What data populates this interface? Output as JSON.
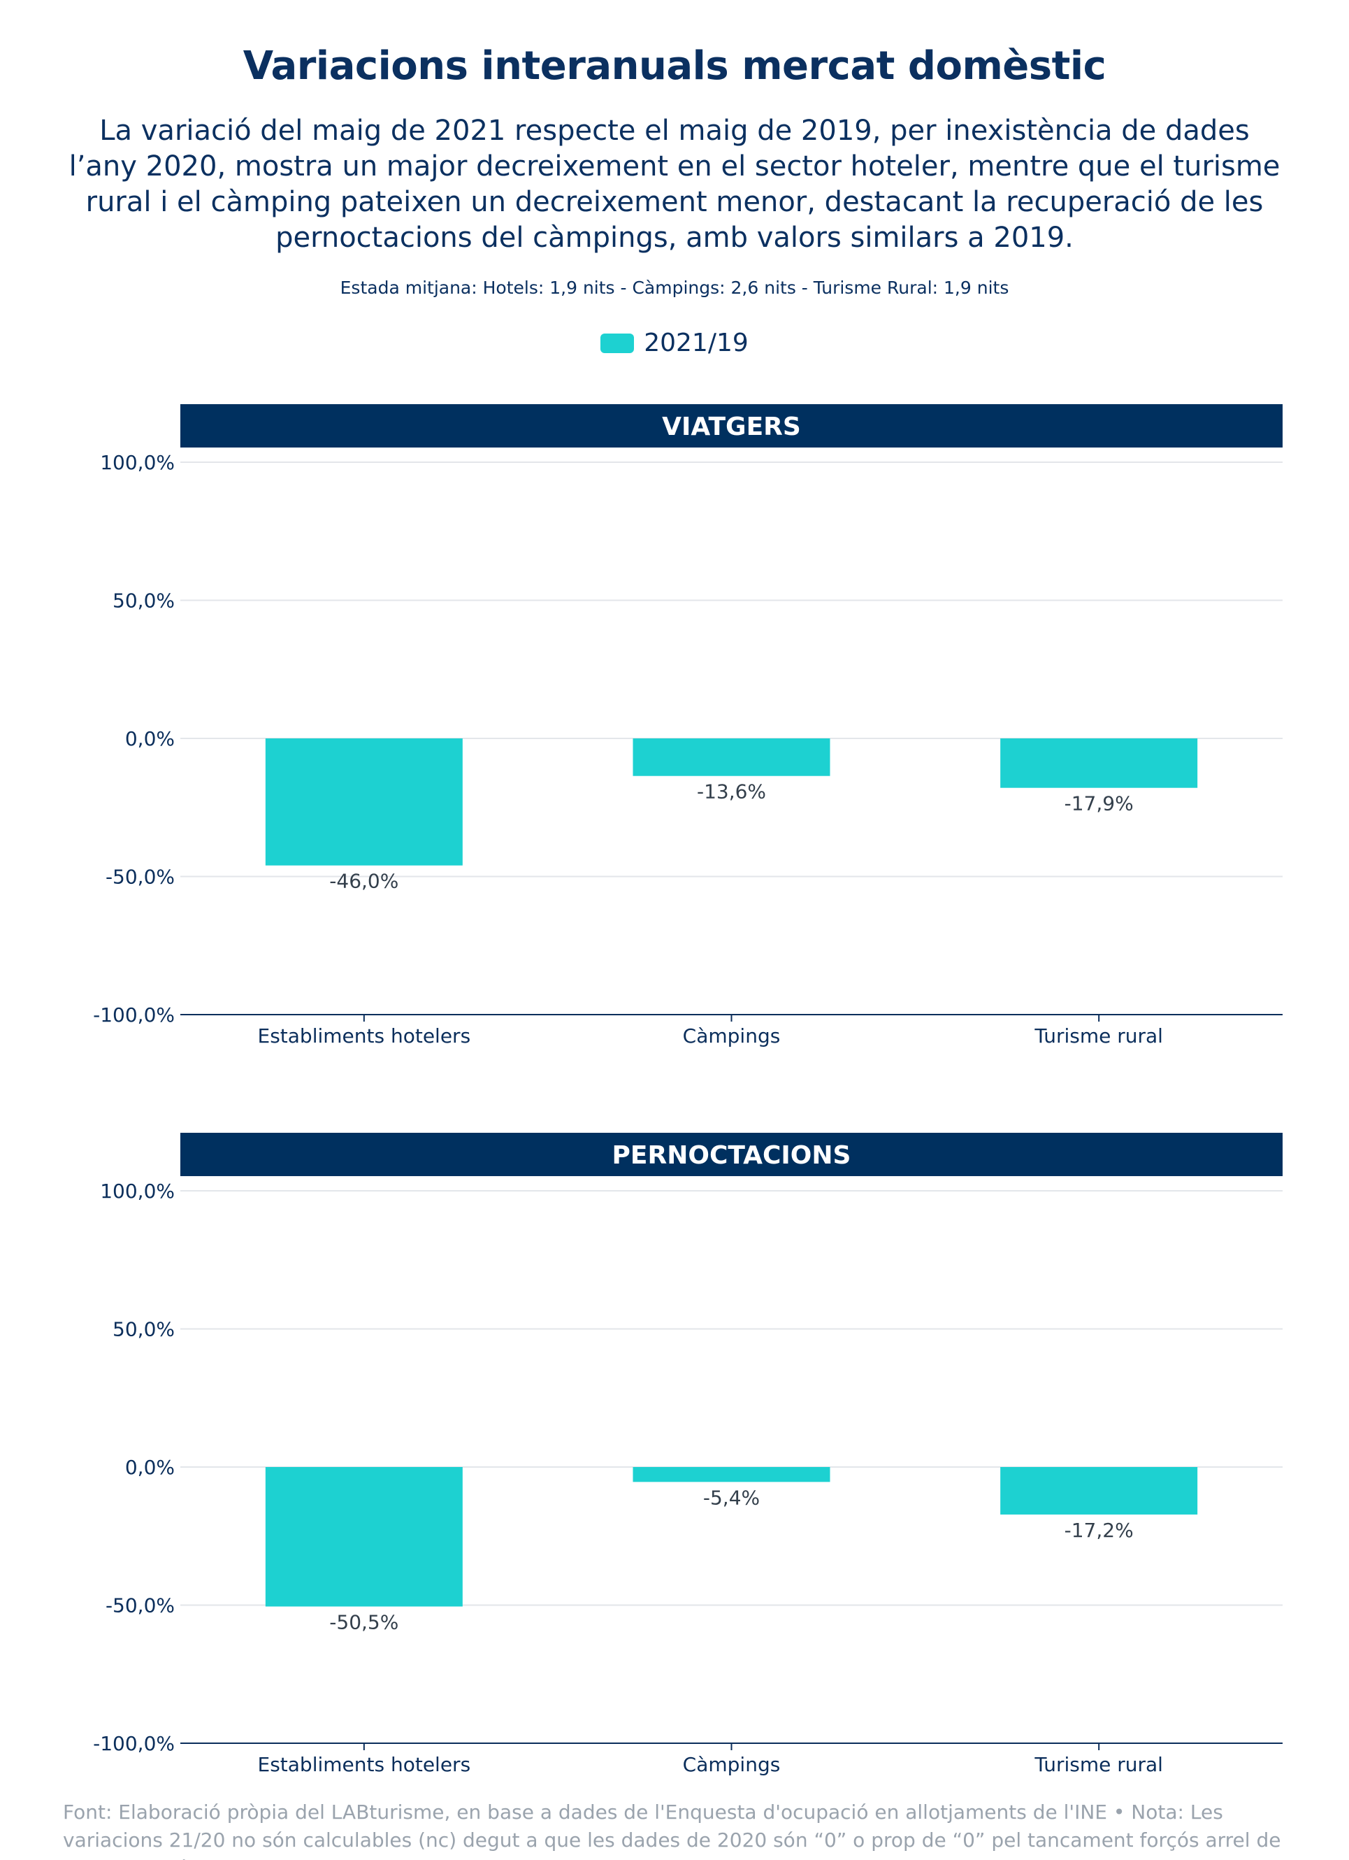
{
  "title": "Variacions interanuals mercat domèstic",
  "subtitle": "La variació del maig de 2021 respecte el maig de 2019, per inexistència de dades l’any 2020, mostra un major decreixement en el sector hoteler, mentre que el turisme rural i el càmping pateixen un decreixement menor, destacant la recuperació de les pernoctacions del càmpings, amb valors similars a 2019.",
  "note": "Estada mitjana: Hotels: 1,9 nits - Càmpings: 2,6 nits - Turisme Rural: 1,9 nits",
  "legend": {
    "label": "2021/19",
    "color": "#1dd1d1"
  },
  "colors": {
    "bar": "#1dd1d1",
    "header": "#00305f",
    "axis": "#0b2e5b",
    "grid": "#e3e6ea"
  },
  "footer": "Font: Elaboració pròpia del LABturisme, en base a dades de l'Enquesta d'ocupació en allotjaments de l'INE • Nota: Les variacions 21/20 no són calculables (nc) degut a que les dades de 2020 són “0” o prop de “0” pel tancament forçós arrel de la crisi sanitària de la COVID",
  "chart_data": [
    {
      "type": "bar",
      "title": "VIATGERS",
      "categories": [
        "Establiments hotelers",
        "Càmpings",
        "Turisme rural"
      ],
      "series": [
        {
          "name": "2021/19",
          "values": [
            -46.0,
            -13.6,
            -17.9
          ]
        }
      ],
      "data_labels": [
        "-46,0%",
        "-13,6%",
        "-17,9%"
      ],
      "ylim": [
        -100,
        100
      ],
      "yticks": [
        100,
        50,
        0,
        -50,
        -100
      ],
      "ytick_labels": [
        "100,0%",
        "50,0%",
        "0,0%",
        "-50,0%",
        "-100,0%"
      ],
      "grid": true
    },
    {
      "type": "bar",
      "title": "PERNOCTACIONS",
      "categories": [
        "Establiments hotelers",
        "Càmpings",
        "Turisme rural"
      ],
      "series": [
        {
          "name": "2021/19",
          "values": [
            -50.5,
            -5.4,
            -17.2
          ]
        }
      ],
      "data_labels": [
        "-50,5%",
        "-5,4%",
        "-17,2%"
      ],
      "ylim": [
        -100,
        100
      ],
      "yticks": [
        100,
        50,
        0,
        -50,
        -100
      ],
      "ytick_labels": [
        "100,0%",
        "50,0%",
        "0,0%",
        "-50,0%",
        "-100,0%"
      ],
      "grid": true
    }
  ]
}
